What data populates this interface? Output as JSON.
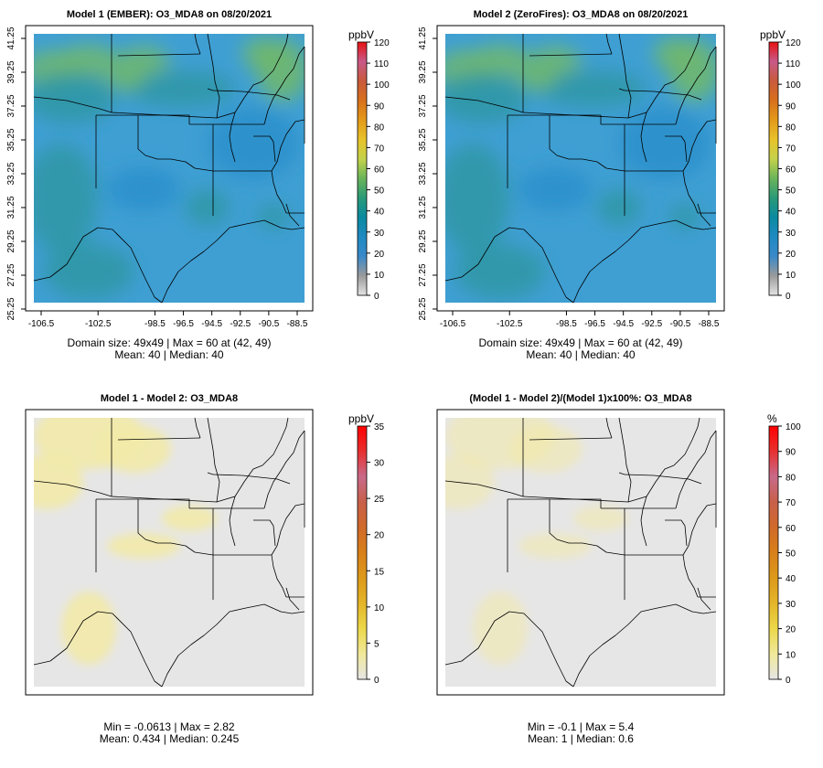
{
  "chart_data": [
    {
      "type": "heatmap",
      "id": "p1",
      "title": "Model 1 (EMBER): O3_MDA8 on 08/20/2021",
      "unit": "ppbV",
      "colorbar": "ozone",
      "colorbar_range": [
        0,
        120
      ],
      "colorbar_ticks": [
        "0",
        "10",
        "20",
        "30",
        "40",
        "50",
        "60",
        "70",
        "80",
        "90",
        "100",
        "110",
        "120"
      ],
      "x_ticks": [
        "-106.5",
        "-102.5",
        "-98.5",
        "-96.5",
        "-94.5",
        "-92.5",
        "-90.5",
        "-88.5"
      ],
      "y_ticks": [
        "25.25",
        "27.25",
        "29.25",
        "31.25",
        "33.25",
        "35.25",
        "37.25",
        "39.25",
        "41.25"
      ],
      "stats_line1": "Domain size: 49x49 | Max = 60 at (42, 49)",
      "stats_line2": "Mean: 40 |  Median: 40"
    },
    {
      "type": "heatmap",
      "id": "p2",
      "title": "Model 2 (ZeroFires): O3_MDA8 on 08/20/2021",
      "unit": "ppbV",
      "colorbar": "ozone",
      "colorbar_range": [
        0,
        120
      ],
      "colorbar_ticks": [
        "0",
        "10",
        "20",
        "30",
        "40",
        "50",
        "60",
        "70",
        "80",
        "90",
        "100",
        "110",
        "120"
      ],
      "x_ticks": [
        "-106.5",
        "-102.5",
        "-98.5",
        "-96.5",
        "-94.5",
        "-92.5",
        "-90.5",
        "-88.5"
      ],
      "y_ticks": [
        "25.25",
        "27.25",
        "29.25",
        "31.25",
        "33.25",
        "35.25",
        "37.25",
        "39.25",
        "41.25"
      ],
      "stats_line1": "Domain size: 49x49 | Max = 60 at (42, 49)",
      "stats_line2": "Mean: 40 |  Median: 40"
    },
    {
      "type": "heatmap",
      "id": "p3",
      "title": "Model 1 - Model 2: O3_MDA8",
      "unit": "ppbV",
      "colorbar": "diff",
      "colorbar_range": [
        0,
        35
      ],
      "colorbar_ticks": [
        "0",
        "5",
        "10",
        "15",
        "20",
        "25",
        "30",
        "35"
      ],
      "stats_line1": "Min = -0.0613 | Max = 2.82",
      "stats_line2": "Mean: 0.434 |  Median: 0.245"
    },
    {
      "type": "heatmap",
      "id": "p4",
      "title": "(Model 1 - Model 2)/(Model 1)x100%: O3_MDA8",
      "unit": "%",
      "colorbar": "diff",
      "colorbar_range": [
        0,
        100
      ],
      "colorbar_ticks": [
        "0",
        "10",
        "20",
        "30",
        "40",
        "50",
        "60",
        "70",
        "80",
        "90",
        "100"
      ],
      "stats_line1": "Min = -0.1 | Max = 5.4",
      "stats_line2": "Mean: 1 |  Median: 0.6"
    }
  ],
  "colors": {
    "ozone": [
      "#e4e4e4",
      "#9a9a9a",
      "#3a89c9",
      "#1f8ac2",
      "#0a8aa0",
      "#2a9a78",
      "#6ab45a",
      "#c4d24a",
      "#e8c22a",
      "#e39a1a",
      "#d8701c",
      "#c95a3c",
      "#c85a88",
      "#e81010"
    ],
    "diff": [
      "#e6e6e6",
      "#f0e89a",
      "#ecd84a",
      "#e3b52a",
      "#dd9a1a",
      "#d8801a",
      "#d06a2a",
      "#c8604a",
      "#c86a8a",
      "#e83030",
      "#ff0000"
    ],
    "field_base": "#3f9fd3",
    "field_deep": "#2b8fcb",
    "field_green": "#72b86a",
    "field_teal": "#2d97a4",
    "diff_base": "#e6e6e6",
    "diff_warm": "#f2eaa8"
  }
}
